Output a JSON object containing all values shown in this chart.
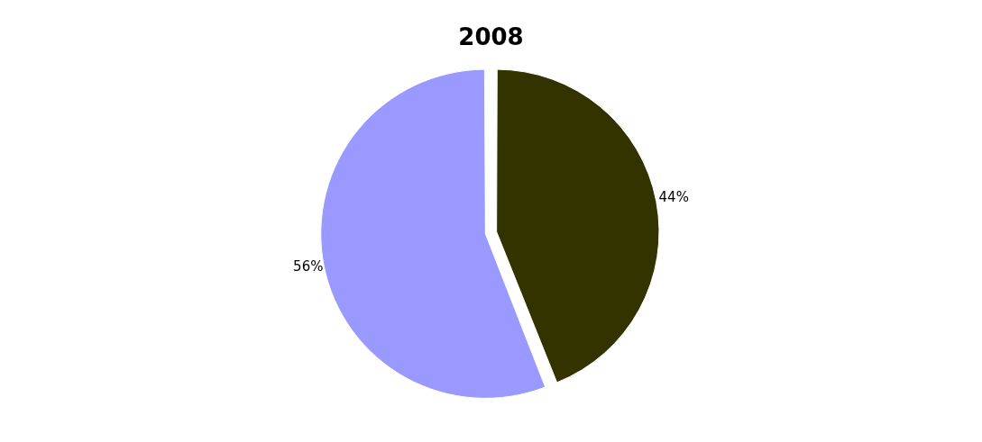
{
  "chart_data": {
    "type": "pie",
    "title": "2008",
    "categories": [
      null,
      null
    ],
    "values": [
      44,
      56
    ],
    "colors": [
      "#333300",
      "#9999ff"
    ],
    "value_labels": [
      "44%",
      "56%"
    ],
    "legend": false
  }
}
